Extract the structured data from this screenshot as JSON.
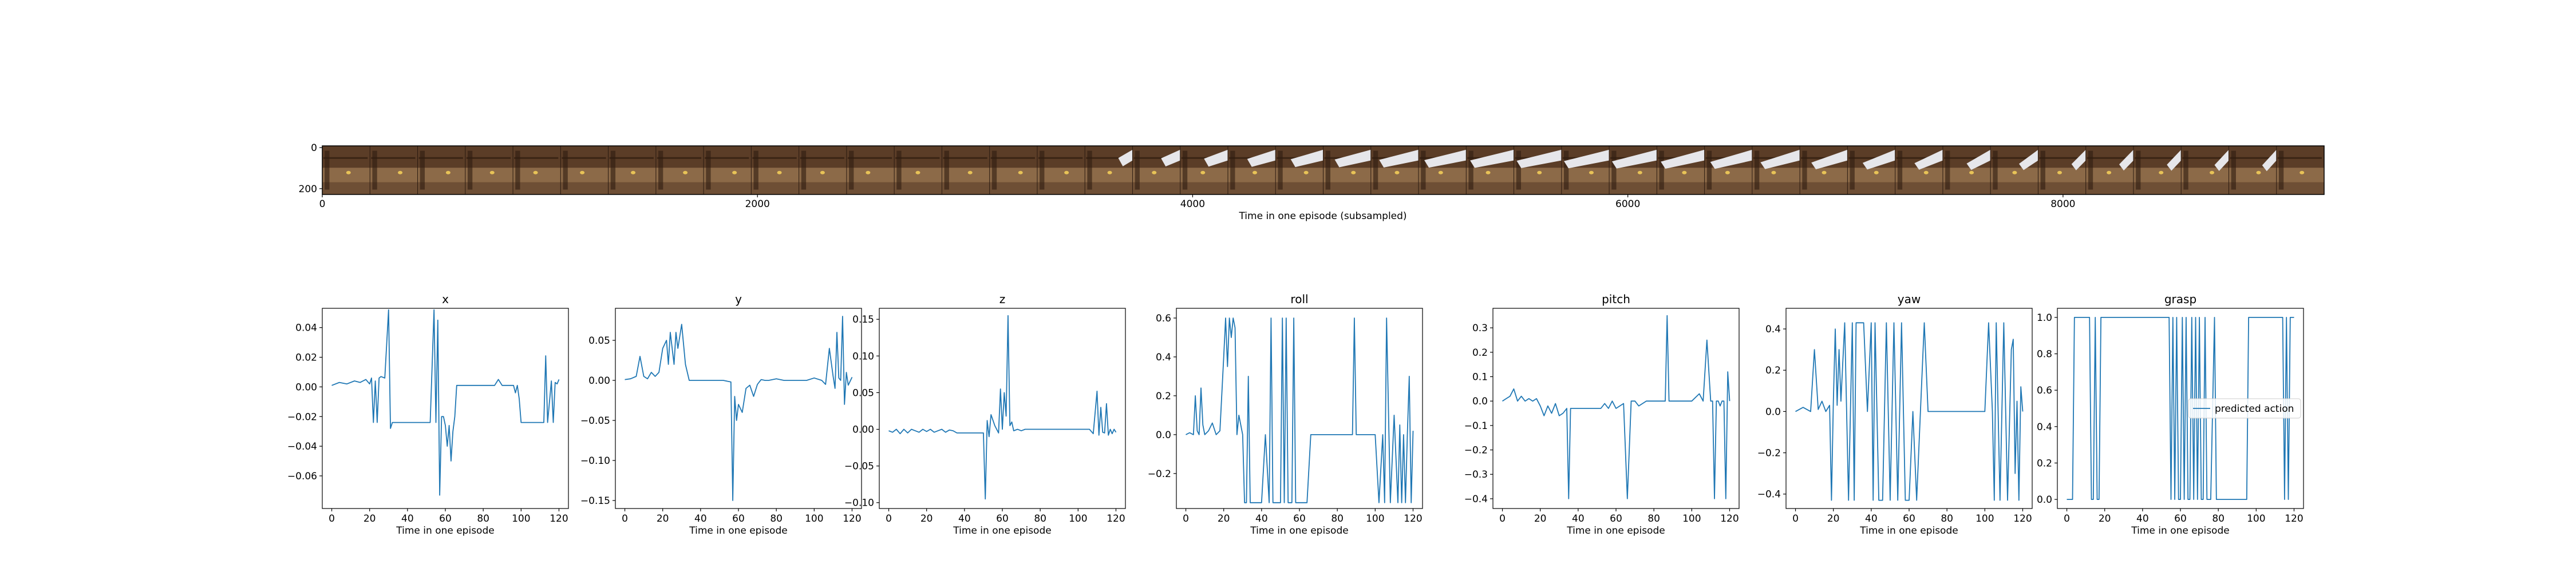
{
  "strip": {
    "xlabel": "Time in one episode (subsampled)",
    "x_ticks": [
      0,
      2000,
      4000,
      6000,
      8000
    ],
    "y_ticks": [
      0,
      200
    ],
    "xlim": [
      0,
      9200
    ],
    "ylim": [
      0,
      220
    ],
    "frame_count": 42,
    "palette": {
      "wall": "#5b3d27",
      "wood": "#8c6a48",
      "floor": "#6e4f35",
      "arm": "#e6e6ea",
      "object": "#e8c357"
    }
  },
  "chart_data": [
    {
      "type": "line",
      "title": "x",
      "xlabel": "Time in one episode",
      "xlim": [
        -5,
        125
      ],
      "ylim": [
        -0.082,
        0.053
      ],
      "x_ticks": [
        0,
        20,
        40,
        60,
        80,
        100,
        120
      ],
      "y_ticks": [
        0.04,
        0.02,
        0.0,
        -0.02,
        -0.04,
        -0.06
      ],
      "y_tick_labels": [
        "0.04",
        "0.02",
        "0.00",
        "−0.02",
        "−0.04",
        "−0.06"
      ],
      "color": "#1f77b4",
      "x": [
        0,
        4,
        8,
        12,
        15,
        18,
        20,
        21,
        22,
        23,
        24,
        25,
        26,
        28,
        30,
        31,
        32,
        34,
        36,
        40,
        44,
        48,
        52,
        54,
        55,
        56,
        57,
        58,
        59,
        60,
        61,
        62,
        63,
        64,
        65,
        66,
        68,
        70,
        72,
        74,
        76,
        78,
        80,
        84,
        86,
        88,
        90,
        92,
        94,
        96,
        97,
        98,
        99,
        100,
        102,
        104,
        106,
        108,
        110,
        112,
        113,
        114,
        115,
        116,
        117,
        118,
        119,
        120
      ],
      "y": [
        0.001,
        0.003,
        0.002,
        0.004,
        0.003,
        0.005,
        0.002,
        0.006,
        -0.024,
        0.004,
        -0.024,
        0.006,
        0.007,
        0.006,
        0.052,
        -0.028,
        -0.024,
        -0.024,
        -0.024,
        -0.024,
        -0.024,
        -0.024,
        -0.024,
        0.052,
        -0.024,
        0.045,
        -0.073,
        -0.02,
        -0.02,
        -0.026,
        -0.04,
        -0.026,
        -0.05,
        -0.03,
        -0.02,
        0.001,
        0.001,
        0.001,
        0.001,
        0.001,
        0.001,
        0.001,
        0.001,
        0.001,
        0.001,
        0.005,
        0.001,
        0.001,
        0.001,
        0.001,
        -0.004,
        0.001,
        -0.008,
        -0.024,
        -0.024,
        -0.024,
        -0.024,
        -0.024,
        -0.024,
        -0.024,
        0.021,
        -0.024,
        -0.01,
        0.004,
        -0.024,
        0.003,
        0.002,
        0.005
      ]
    },
    {
      "type": "line",
      "title": "y",
      "xlabel": "Time in one episode",
      "xlim": [
        -5,
        125
      ],
      "ylim": [
        -0.16,
        0.09
      ],
      "x_ticks": [
        0,
        20,
        40,
        60,
        80,
        100,
        120
      ],
      "y_ticks": [
        0.05,
        0.0,
        -0.05,
        -0.1,
        -0.15
      ],
      "y_tick_labels": [
        "0.05",
        "0.00",
        "−0.05",
        "−0.10",
        "−0.15"
      ],
      "color": "#1f77b4",
      "x": [
        0,
        3,
        6,
        8,
        10,
        12,
        14,
        16,
        18,
        20,
        22,
        23,
        24,
        25,
        26,
        27,
        28,
        30,
        32,
        34,
        36,
        40,
        44,
        48,
        52,
        56,
        57,
        58,
        59,
        60,
        62,
        64,
        66,
        68,
        70,
        72,
        74,
        76,
        80,
        84,
        88,
        92,
        96,
        100,
        104,
        106,
        108,
        110,
        111,
        112,
        113,
        114,
        115,
        116,
        117,
        118,
        120
      ],
      "y": [
        0.001,
        0.002,
        0.005,
        0.03,
        0.005,
        0.002,
        0.01,
        0.005,
        0.01,
        0.04,
        0.05,
        0.02,
        0.06,
        0.04,
        0.02,
        0.06,
        0.04,
        0.07,
        0.02,
        0.0,
        0.0,
        0.0,
        0.0,
        0.0,
        0.0,
        -0.002,
        -0.15,
        -0.02,
        -0.05,
        -0.03,
        -0.04,
        -0.01,
        -0.006,
        -0.02,
        -0.005,
        0.001,
        0.0,
        0.0,
        0.002,
        0.0,
        0.0,
        0.0,
        0.0,
        0.003,
        0.0,
        -0.005,
        0.04,
        0.005,
        -0.01,
        0.06,
        0.003,
        0.0,
        0.08,
        -0.03,
        0.01,
        -0.006,
        0.004
      ]
    },
    {
      "type": "line",
      "title": "z",
      "xlabel": "Time in one episode",
      "xlim": [
        -5,
        125
      ],
      "ylim": [
        -0.108,
        0.165
      ],
      "x_ticks": [
        0,
        20,
        40,
        60,
        80,
        100,
        120
      ],
      "y_ticks": [
        0.15,
        0.1,
        0.05,
        0.0,
        -0.05,
        -0.1
      ],
      "y_tick_labels": [
        "0.15",
        "0.10",
        "0.05",
        "0.00",
        "−0.05",
        "−0.10"
      ],
      "color": "#1f77b4",
      "x": [
        0,
        2,
        4,
        6,
        8,
        10,
        12,
        14,
        16,
        18,
        20,
        22,
        24,
        26,
        28,
        30,
        32,
        34,
        36,
        40,
        44,
        48,
        50,
        51,
        52,
        53,
        54,
        56,
        58,
        59,
        60,
        61,
        62,
        63,
        64,
        65,
        66,
        68,
        70,
        72,
        76,
        80,
        84,
        88,
        92,
        96,
        100,
        104,
        106,
        108,
        110,
        111,
        112,
        113,
        114,
        115,
        116,
        117,
        118,
        119,
        120
      ],
      "y": [
        -0.002,
        -0.004,
        0.0,
        -0.006,
        0.0,
        -0.005,
        0.0,
        -0.002,
        -0.004,
        0.0,
        -0.003,
        0.0,
        -0.004,
        -0.002,
        0.0,
        -0.004,
        -0.001,
        -0.002,
        -0.005,
        -0.005,
        -0.005,
        -0.005,
        -0.005,
        -0.095,
        0.012,
        -0.01,
        0.02,
        0.005,
        -0.005,
        0.055,
        0.0,
        0.05,
        0.018,
        0.155,
        0.005,
        0.01,
        -0.002,
        0.0,
        -0.002,
        0.0,
        0.0,
        0.0,
        0.0,
        0.0,
        0.0,
        0.0,
        0.0,
        0.0,
        0.0,
        -0.006,
        0.052,
        -0.008,
        0.03,
        -0.004,
        -0.005,
        0.035,
        -0.008,
        0.0,
        -0.006,
        0.0,
        -0.004
      ]
    },
    {
      "type": "line",
      "title": "roll",
      "xlabel": "Time in one episode",
      "xlim": [
        -5,
        125
      ],
      "ylim": [
        -0.38,
        0.65
      ],
      "x_ticks": [
        0,
        20,
        40,
        60,
        80,
        100,
        120
      ],
      "y_ticks": [
        0.6,
        0.4,
        0.2,
        0.0,
        -0.2
      ],
      "y_tick_labels": [
        "0.6",
        "0.4",
        "0.2",
        "0.0",
        "−0.2"
      ],
      "color": "#1f77b4",
      "x": [
        0,
        2,
        4,
        5,
        6,
        7,
        8,
        9,
        10,
        12,
        14,
        16,
        18,
        20,
        21,
        22,
        23,
        24,
        25,
        26,
        27,
        28,
        30,
        31,
        32,
        33,
        34,
        36,
        38,
        40,
        42,
        44,
        45,
        46,
        48,
        50,
        51,
        52,
        53,
        54,
        56,
        57,
        58,
        60,
        62,
        64,
        66,
        68,
        70,
        72,
        76,
        80,
        84,
        86,
        88,
        89,
        90,
        92,
        96,
        100,
        102,
        104,
        105,
        106,
        108,
        110,
        112,
        113,
        114,
        115,
        116,
        117,
        118,
        119,
        120
      ],
      "y": [
        0.0,
        0.01,
        0.0,
        0.2,
        0.02,
        0.0,
        0.24,
        0.05,
        0.0,
        0.02,
        0.06,
        0.0,
        0.02,
        0.4,
        0.6,
        0.35,
        0.6,
        0.5,
        0.6,
        0.55,
        0.0,
        0.1,
        0.0,
        -0.35,
        -0.35,
        0.3,
        -0.35,
        -0.35,
        -0.35,
        -0.35,
        0.0,
        -0.35,
        0.6,
        -0.35,
        -0.35,
        -0.35,
        0.6,
        -0.35,
        0.6,
        -0.35,
        -0.35,
        0.6,
        -0.35,
        -0.35,
        -0.35,
        -0.35,
        0.0,
        0.0,
        0.0,
        0.0,
        0.0,
        0.0,
        0.0,
        0.0,
        0.0,
        0.6,
        0.0,
        0.0,
        0.0,
        0.0,
        -0.35,
        0.0,
        -0.35,
        0.6,
        -0.35,
        0.1,
        -0.35,
        0.05,
        -0.35,
        0.0,
        -0.35,
        0.0,
        0.3,
        -0.35,
        0.02
      ]
    },
    {
      "type": "line",
      "title": "pitch",
      "xlabel": "Time in one episode",
      "xlim": [
        -5,
        125
      ],
      "ylim": [
        -0.44,
        0.38
      ],
      "x_ticks": [
        0,
        20,
        40,
        60,
        80,
        100,
        120
      ],
      "y_ticks": [
        0.3,
        0.2,
        0.1,
        0.0,
        -0.1,
        -0.2,
        -0.3,
        -0.4
      ],
      "y_tick_labels": [
        "0.3",
        "0.2",
        "0.1",
        "0.0",
        "−0.1",
        "−0.2",
        "−0.3",
        "−0.4"
      ],
      "color": "#1f77b4",
      "x": [
        0,
        2,
        4,
        6,
        8,
        10,
        12,
        14,
        16,
        18,
        20,
        22,
        24,
        26,
        28,
        30,
        32,
        34,
        35,
        36,
        38,
        40,
        42,
        44,
        46,
        48,
        50,
        52,
        54,
        56,
        58,
        60,
        64,
        66,
        68,
        70,
        72,
        76,
        80,
        84,
        86,
        87,
        88,
        90,
        92,
        96,
        100,
        104,
        106,
        108,
        110,
        111,
        112,
        113,
        114,
        115,
        116,
        117,
        118,
        119,
        120
      ],
      "y": [
        0.0,
        0.01,
        0.02,
        0.05,
        0.0,
        0.02,
        0.0,
        0.01,
        0.0,
        0.01,
        -0.02,
        -0.06,
        -0.02,
        -0.05,
        -0.01,
        -0.06,
        -0.05,
        -0.03,
        -0.4,
        -0.03,
        -0.03,
        -0.03,
        -0.03,
        -0.03,
        -0.03,
        -0.03,
        -0.03,
        -0.03,
        -0.01,
        -0.03,
        0.0,
        -0.03,
        -0.01,
        -0.4,
        0.0,
        0.0,
        -0.02,
        0.0,
        0.0,
        0.0,
        0.0,
        0.35,
        0.0,
        0.0,
        0.0,
        0.0,
        0.0,
        0.03,
        0.0,
        0.25,
        0.0,
        0.0,
        -0.4,
        0.0,
        0.0,
        -0.02,
        0.0,
        0.0,
        -0.4,
        0.12,
        0.0
      ]
    },
    {
      "type": "line",
      "title": "yaw",
      "xlabel": "Time in one episode",
      "xlim": [
        -5,
        125
      ],
      "ylim": [
        -0.47,
        0.5
      ],
      "x_ticks": [
        0,
        20,
        40,
        60,
        80,
        100,
        120
      ],
      "y_ticks": [
        0.4,
        0.2,
        0.0,
        -0.2,
        -0.4
      ],
      "y_tick_labels": [
        "0.4",
        "0.2",
        "0.0",
        "−0.2",
        "−0.4"
      ],
      "color": "#1f77b4",
      "x": [
        0,
        4,
        8,
        10,
        12,
        14,
        16,
        18,
        19,
        20,
        21,
        22,
        23,
        24,
        26,
        28,
        30,
        31,
        32,
        34,
        36,
        38,
        40,
        41,
        42,
        44,
        46,
        48,
        50,
        52,
        54,
        56,
        58,
        60,
        62,
        64,
        66,
        68,
        70,
        72,
        76,
        80,
        84,
        88,
        92,
        96,
        100,
        102,
        104,
        105,
        106,
        108,
        110,
        111,
        112,
        114,
        115,
        116,
        117,
        118,
        119,
        120
      ],
      "y": [
        0.0,
        0.02,
        0.0,
        0.3,
        0.01,
        0.05,
        0.0,
        0.03,
        -0.43,
        0.05,
        0.4,
        0.03,
        0.3,
        0.05,
        0.43,
        -0.43,
        0.43,
        -0.43,
        0.43,
        0.43,
        0.43,
        0.0,
        0.43,
        -0.43,
        0.43,
        -0.43,
        -0.43,
        0.43,
        -0.43,
        0.43,
        -0.43,
        0.43,
        -0.43,
        -0.43,
        0.0,
        -0.43,
        0.0,
        0.43,
        0.0,
        0.0,
        0.0,
        0.0,
        0.0,
        0.0,
        0.0,
        0.0,
        0.0,
        0.43,
        0.0,
        -0.43,
        0.43,
        -0.43,
        0.43,
        0.0,
        -0.43,
        0.3,
        0.35,
        -0.3,
        0.05,
        -0.43,
        0.12,
        0.0
      ]
    },
    {
      "type": "line",
      "title": "grasp",
      "xlabel": "Time in one episode",
      "xlim": [
        -5,
        125
      ],
      "ylim": [
        -0.05,
        1.05
      ],
      "x_ticks": [
        0,
        20,
        40,
        60,
        80,
        100,
        120
      ],
      "y_ticks": [
        1.0,
        0.8,
        0.6,
        0.4,
        0.2,
        0.0
      ],
      "y_tick_labels": [
        "1.0",
        "0.8",
        "0.6",
        "0.4",
        "0.2",
        "0.0"
      ],
      "color": "#1f77b4",
      "legend": {
        "label": "predicted action",
        "placement": "center-right"
      },
      "x": [
        0,
        3,
        4,
        12,
        13,
        14,
        15,
        16,
        17,
        18,
        54,
        55,
        56,
        57,
        58,
        59,
        60,
        61,
        62,
        63,
        64,
        65,
        66,
        67,
        68,
        69,
        70,
        71,
        72,
        73,
        74,
        76,
        78,
        79,
        80,
        94,
        95,
        96,
        114,
        115,
        116,
        117,
        118,
        120
      ],
      "y": [
        0,
        0,
        1,
        1,
        0,
        0,
        1,
        0,
        0,
        1,
        1,
        0,
        1,
        0,
        1,
        0,
        0,
        1,
        0,
        1,
        0,
        0,
        1,
        0,
        1,
        0,
        1,
        0,
        0,
        1,
        0,
        0,
        1,
        0,
        0,
        0,
        0,
        1,
        1,
        0,
        1,
        0,
        1,
        1
      ]
    }
  ]
}
